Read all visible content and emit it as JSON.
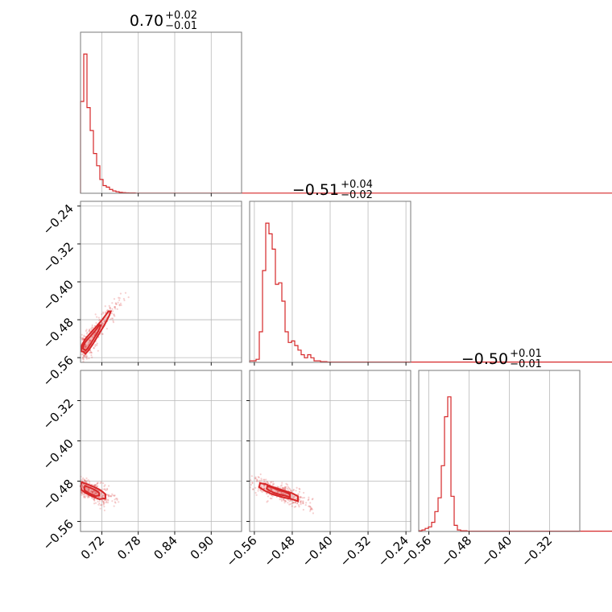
{
  "chart_data": {
    "type": "corner",
    "color": "#d62728",
    "grid": true,
    "parameters": [
      {
        "median": "0.70",
        "plus": "+0.02",
        "minus": "−0.01"
      },
      {
        "median": "−0.51",
        "plus": "+0.04",
        "minus": "−0.02"
      },
      {
        "median": "−0.50",
        "plus": "+0.01",
        "minus": "−0.01"
      }
    ],
    "ranges": [
      [
        0.685,
        0.95
      ],
      [
        -0.57,
        -0.23
      ],
      [
        -0.58,
        -0.26
      ]
    ],
    "ticks": [
      [
        "0.72",
        "0.78",
        "0.84",
        "0.90"
      ],
      [
        "−0.56",
        "−0.48",
        "−0.40",
        "−0.32",
        "−0.24"
      ],
      [
        "−0.56",
        "−0.48",
        "−0.40",
        "−0.32"
      ]
    ],
    "tick_values": [
      [
        0.72,
        0.78,
        0.84,
        0.9
      ],
      [
        -0.56,
        -0.48,
        -0.4,
        -0.32,
        -0.24
      ],
      [
        -0.56,
        -0.48,
        -0.4,
        -0.32
      ]
    ],
    "histograms": [
      {
        "edges_start": 0.685,
        "bin_width": 0.0053,
        "counts": [
          0.6,
          0.91,
          0.56,
          0.41,
          0.26,
          0.18,
          0.09,
          0.05,
          0.04,
          0.025,
          0.015,
          0.01,
          0.006,
          0.004,
          0.003,
          0.002,
          0.002,
          0.001,
          0.001,
          0.001
        ]
      },
      {
        "edges_start": -0.57,
        "bin_width": 0.0068,
        "counts": [
          0.01,
          0.01,
          0.02,
          0.2,
          0.6,
          0.91,
          0.84,
          0.74,
          0.51,
          0.52,
          0.4,
          0.2,
          0.13,
          0.14,
          0.11,
          0.08,
          0.05,
          0.03,
          0.05,
          0.03,
          0.01,
          0.01,
          0.005,
          0.005,
          0.002,
          0.002
        ]
      },
      {
        "edges_start": -0.58,
        "bin_width": 0.0064,
        "counts": [
          0.005,
          0.01,
          0.02,
          0.03,
          0.06,
          0.13,
          0.22,
          0.43,
          0.75,
          0.88,
          0.23,
          0.04,
          0.01,
          0.005,
          0.005,
          0.002
        ]
      }
    ],
    "contours": [
      {
        "row": 1,
        "col": 0,
        "center": [
          0.694,
          -0.535
        ],
        "points": [
          [
            0.69,
            -0.548
          ],
          [
            0.693,
            -0.552
          ],
          [
            0.698,
            -0.545
          ],
          [
            0.705,
            -0.532
          ],
          [
            0.713,
            -0.515
          ],
          [
            0.724,
            -0.492
          ],
          [
            0.732,
            -0.472
          ],
          [
            0.735,
            -0.462
          ],
          [
            0.731,
            -0.462
          ],
          [
            0.722,
            -0.478
          ],
          [
            0.71,
            -0.496
          ],
          [
            0.7,
            -0.51
          ],
          [
            0.692,
            -0.522
          ],
          [
            0.687,
            -0.535
          ],
          [
            0.686,
            -0.546
          ]
        ]
      },
      {
        "row": 2,
        "col": 0,
        "center": [
          0.7,
          -0.5
        ],
        "points": [
          [
            0.687,
            -0.482
          ],
          [
            0.696,
            -0.486
          ],
          [
            0.708,
            -0.492
          ],
          [
            0.718,
            -0.498
          ],
          [
            0.726,
            -0.506
          ],
          [
            0.726,
            -0.514
          ],
          [
            0.716,
            -0.516
          ],
          [
            0.704,
            -0.51
          ],
          [
            0.694,
            -0.504
          ],
          [
            0.687,
            -0.498
          ],
          [
            0.685,
            -0.49
          ]
        ]
      },
      {
        "row": 2,
        "col": 1,
        "center": [
          -0.51,
          -0.5
        ],
        "points": [
          [
            -0.548,
            -0.484
          ],
          [
            -0.536,
            -0.486
          ],
          [
            -0.52,
            -0.492
          ],
          [
            -0.5,
            -0.498
          ],
          [
            -0.48,
            -0.504
          ],
          [
            -0.468,
            -0.51
          ],
          [
            -0.468,
            -0.52
          ],
          [
            -0.48,
            -0.516
          ],
          [
            -0.5,
            -0.512
          ],
          [
            -0.522,
            -0.506
          ],
          [
            -0.54,
            -0.498
          ],
          [
            -0.55,
            -0.492
          ]
        ]
      }
    ]
  }
}
